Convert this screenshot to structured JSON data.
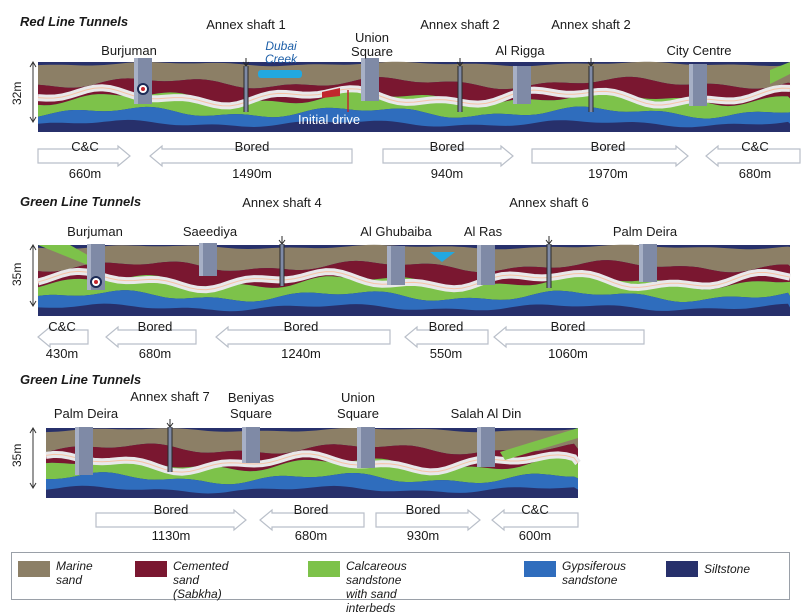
{
  "colors": {
    "marine_sand": "#8c7f66",
    "cemented_sand": "#7a1730",
    "calcareous_sandstone": "#7dc24a",
    "gypsiferous_sandstone": "#2f6dbd",
    "siltstone": "#27306b",
    "tunnel": "#e8e8ea",
    "station": "#7f8aa6",
    "water": "#22a8e0",
    "arrow_fill": "#ffffff",
    "arrow_stroke": "#b9bfc9"
  },
  "panels": [
    {
      "title": "Red Line Tunnels",
      "depth": "32m",
      "stations": [
        "Burjuman",
        "Union Square",
        "Al Rigga",
        "City Centre"
      ],
      "shafts": [
        "Annex shaft 1",
        "Annex shaft 2",
        "Annex shaft 2"
      ],
      "creek": "Dubai Creek",
      "initial_drive": "Initial drive",
      "segments": [
        {
          "method": "C&C",
          "length": "660m"
        },
        {
          "method": "Bored",
          "length": "1490m"
        },
        {
          "method": "Bored",
          "length": "940m"
        },
        {
          "method": "Bored",
          "length": "1970m"
        },
        {
          "method": "C&C",
          "length": "680m"
        }
      ]
    },
    {
      "title": "Green Line Tunnels",
      "depth": "35m",
      "stations": [
        "Burjuman",
        "Saeediya",
        "Al Ghubaiba",
        "Al Ras",
        "Palm Deira"
      ],
      "shafts": [
        "Annex shaft 4",
        "Annex shaft 6"
      ],
      "segments": [
        {
          "method": "C&C",
          "length": "430m"
        },
        {
          "method": "Bored",
          "length": "680m"
        },
        {
          "method": "Bored",
          "length": "1240m"
        },
        {
          "method": "Bored",
          "length": "550m"
        },
        {
          "method": "Bored",
          "length": "1060m"
        }
      ]
    },
    {
      "title": "Green Line Tunnels",
      "depth": "35m",
      "stations": [
        "Palm Deira",
        "Beniyas Square",
        "Union Square",
        "Salah Al Din"
      ],
      "shafts": [
        "Annex shaft 7"
      ],
      "segments": [
        {
          "method": "Bored",
          "length": "1130m"
        },
        {
          "method": "Bored",
          "length": "680m"
        },
        {
          "method": "Bored",
          "length": "930m"
        },
        {
          "method": "C&C",
          "length": "600m"
        }
      ]
    }
  ],
  "legend": [
    {
      "label": "Marine\nsand",
      "color": "#8c7f66"
    },
    {
      "label": "Cemented sand\n(Sabkha)",
      "color": "#7a1730"
    },
    {
      "label": "Calcareous sandstone\nwith sand interbeds",
      "color": "#7dc24a"
    },
    {
      "label": "Gypsiferous\nsandstone",
      "color": "#2f6dbd"
    },
    {
      "label": "Siltstone",
      "color": "#27306b"
    }
  ]
}
